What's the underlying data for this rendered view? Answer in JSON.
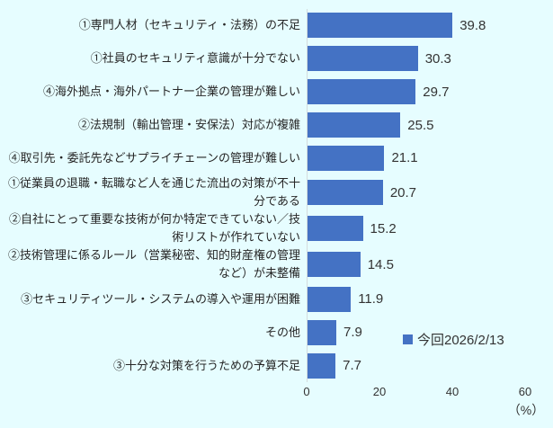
{
  "chart_data": {
    "type": "bar",
    "orientation": "horizontal",
    "categories": [
      "①専門人材（セキュリティ・法務）の不足",
      "①社員のセキュリティ意識が十分でない",
      "④海外拠点・海外パートナー企業の管理が難しい",
      "②法規制（輸出管理・安保法）対応が複雑",
      "④取引先・委託先などサプライチェーンの管理が難しい",
      "①従業員の退職・転職など人を通じた流出の対策が不十分である",
      "②自社にとって重要な技術が何か特定できていない／技術リストが作れていない",
      "②技術管理に係るルール（営業秘密、知的財産権の管理など）が未整備",
      "③セキュリティツール・システムの導入や運用が困難",
      "その他",
      "③十分な対策を行うための予算不足"
    ],
    "values": [
      39.8,
      30.3,
      29.7,
      25.5,
      21.1,
      20.7,
      15.2,
      14.5,
      11.9,
      7.9,
      7.7
    ],
    "series_name": "今回2026/2/13",
    "xlim": [
      0,
      60
    ],
    "x_ticks": [
      0,
      20,
      40,
      60
    ],
    "x_unit": "（%）",
    "legend_position": "right-lower-inside",
    "grid": false,
    "bar_color": "#4472C4",
    "background_color": "#E6FDFF",
    "axis_line_color": "#D4DCDD"
  }
}
